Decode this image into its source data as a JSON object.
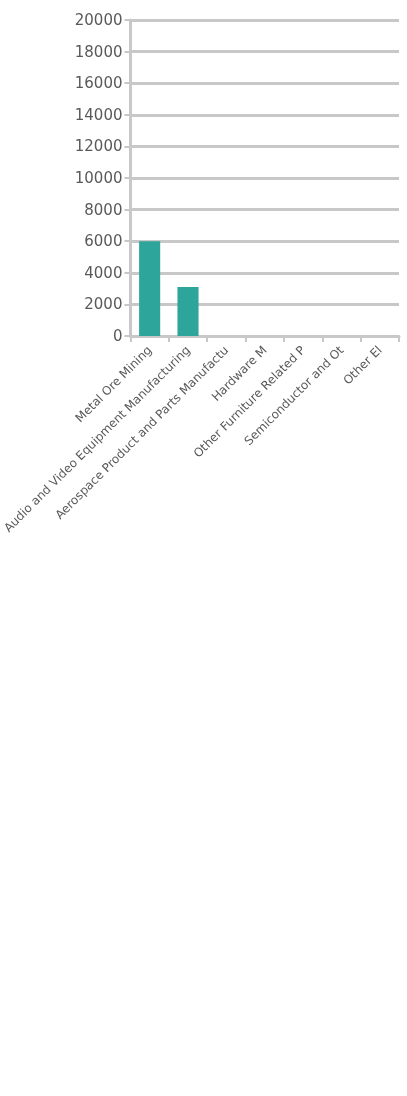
{
  "chart_data": {
    "type": "bar",
    "categories": [
      "Metal Ore Mining",
      "Audio and Video Equipment Manufacturing",
      "Aerospace Product and Parts Manufactu",
      "Hardware M",
      "Other Furniture Related P",
      "Semiconductor and Ot",
      "Other El"
    ],
    "values": [
      6000,
      3100,
      null,
      null,
      null,
      null,
      null
    ],
    "color": "#2ea59a",
    "ylim": [
      0,
      20000
    ],
    "yticks": [
      0,
      2000,
      4000,
      6000,
      8000,
      10000,
      12000,
      14000,
      16000,
      18000,
      20000
    ],
    "grid": "y"
  }
}
